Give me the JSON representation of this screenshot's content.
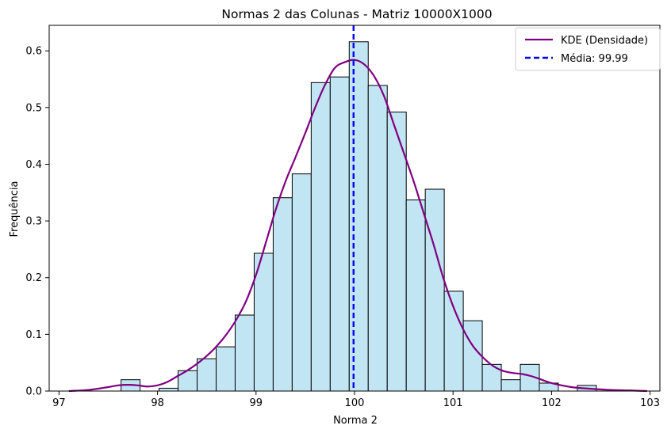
{
  "chart_data": {
    "type": "bar",
    "title": "Normas 2 das Colunas - Matriz 10000X1000",
    "xlabel": "Norma 2",
    "ylabel": "Frequência",
    "xlim": [
      96.9,
      103.1
    ],
    "ylim": [
      0,
      0.645
    ],
    "xticks": [
      97,
      98,
      99,
      100,
      101,
      102,
      103
    ],
    "yticks": [
      0.0,
      0.1,
      0.2,
      0.3,
      0.4,
      0.5,
      0.6
    ],
    "xtick_labels": [
      "97",
      "98",
      "99",
      "100",
      "101",
      "102",
      "103"
    ],
    "ytick_labels": [
      "0.0",
      "0.1",
      "0.2",
      "0.3",
      "0.4",
      "0.5",
      "0.6"
    ],
    "grid": false,
    "legend_position": "top-right",
    "histogram": {
      "bin_start": 97.63,
      "bin_width": 0.193,
      "densities": [
        0.02,
        0.0,
        0.005,
        0.036,
        0.057,
        0.078,
        0.134,
        0.243,
        0.341,
        0.383,
        0.544,
        0.554,
        0.616,
        0.539,
        0.492,
        0.337,
        0.356,
        0.176,
        0.124,
        0.047,
        0.02,
        0.047,
        0.014,
        0.0,
        0.01
      ],
      "fill_color": "#c2e5f3",
      "edge_color": "#000000"
    },
    "series": [
      {
        "name": "KDE (Densidade)",
        "kind": "line",
        "color": "#800080",
        "x": [
          97.1,
          97.3,
          97.5,
          97.6,
          97.7,
          97.8,
          97.9,
          98.0,
          98.1,
          98.2,
          98.3,
          98.4,
          98.5,
          98.6,
          98.7,
          98.8,
          98.9,
          99.0,
          99.1,
          99.2,
          99.3,
          99.4,
          99.5,
          99.6,
          99.7,
          99.8,
          99.9,
          100.0,
          100.1,
          100.2,
          100.3,
          100.4,
          100.5,
          100.6,
          100.7,
          100.8,
          100.9,
          101.0,
          101.1,
          101.2,
          101.3,
          101.4,
          101.5,
          101.6,
          101.7,
          101.8,
          101.9,
          102.0,
          102.2,
          102.4,
          102.6,
          102.8,
          102.97
        ],
        "y": [
          0.0,
          0.002,
          0.007,
          0.01,
          0.011,
          0.01,
          0.008,
          0.01,
          0.016,
          0.026,
          0.036,
          0.048,
          0.062,
          0.079,
          0.1,
          0.126,
          0.159,
          0.205,
          0.262,
          0.32,
          0.37,
          0.412,
          0.455,
          0.5,
          0.54,
          0.57,
          0.58,
          0.584,
          0.576,
          0.555,
          0.52,
          0.47,
          0.42,
          0.37,
          0.315,
          0.26,
          0.2,
          0.15,
          0.11,
          0.08,
          0.06,
          0.045,
          0.036,
          0.032,
          0.03,
          0.026,
          0.02,
          0.014,
          0.007,
          0.004,
          0.002,
          0.001,
          0.0
        ]
      },
      {
        "name": "Média: 99.99",
        "kind": "vline",
        "x": 99.99,
        "color": "#0000ff",
        "linestyle": "dashed"
      }
    ]
  }
}
